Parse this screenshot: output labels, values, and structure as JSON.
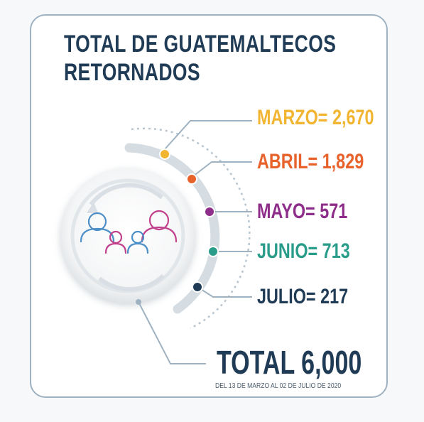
{
  "title": {
    "line1": "TOTAL DE GUATEMALTECOS",
    "line2": "RETORNADOS"
  },
  "months": [
    {
      "name": "MARZO",
      "value": "2,670",
      "color": "#f2b531"
    },
    {
      "name": "ABRIL",
      "value": "1,829",
      "color": "#e8622c"
    },
    {
      "name": "MAYO",
      "value": "571",
      "color": "#8f2e8a"
    },
    {
      "name": "JUNIO",
      "value": "713",
      "color": "#2a9d8a"
    },
    {
      "name": "JULIO",
      "value": "217",
      "color": "#1f3b55"
    }
  ],
  "separator": "= ",
  "total": {
    "label": "TOTAL 6,000",
    "period": "DEL 13 DE MARZO AL 02 DE JULIO DE 2020"
  },
  "icon": "family-group-icon",
  "colors": {
    "title": "#1f3b55",
    "arc": "#9fb2c1",
    "card_border": "#9fb2c1"
  }
}
